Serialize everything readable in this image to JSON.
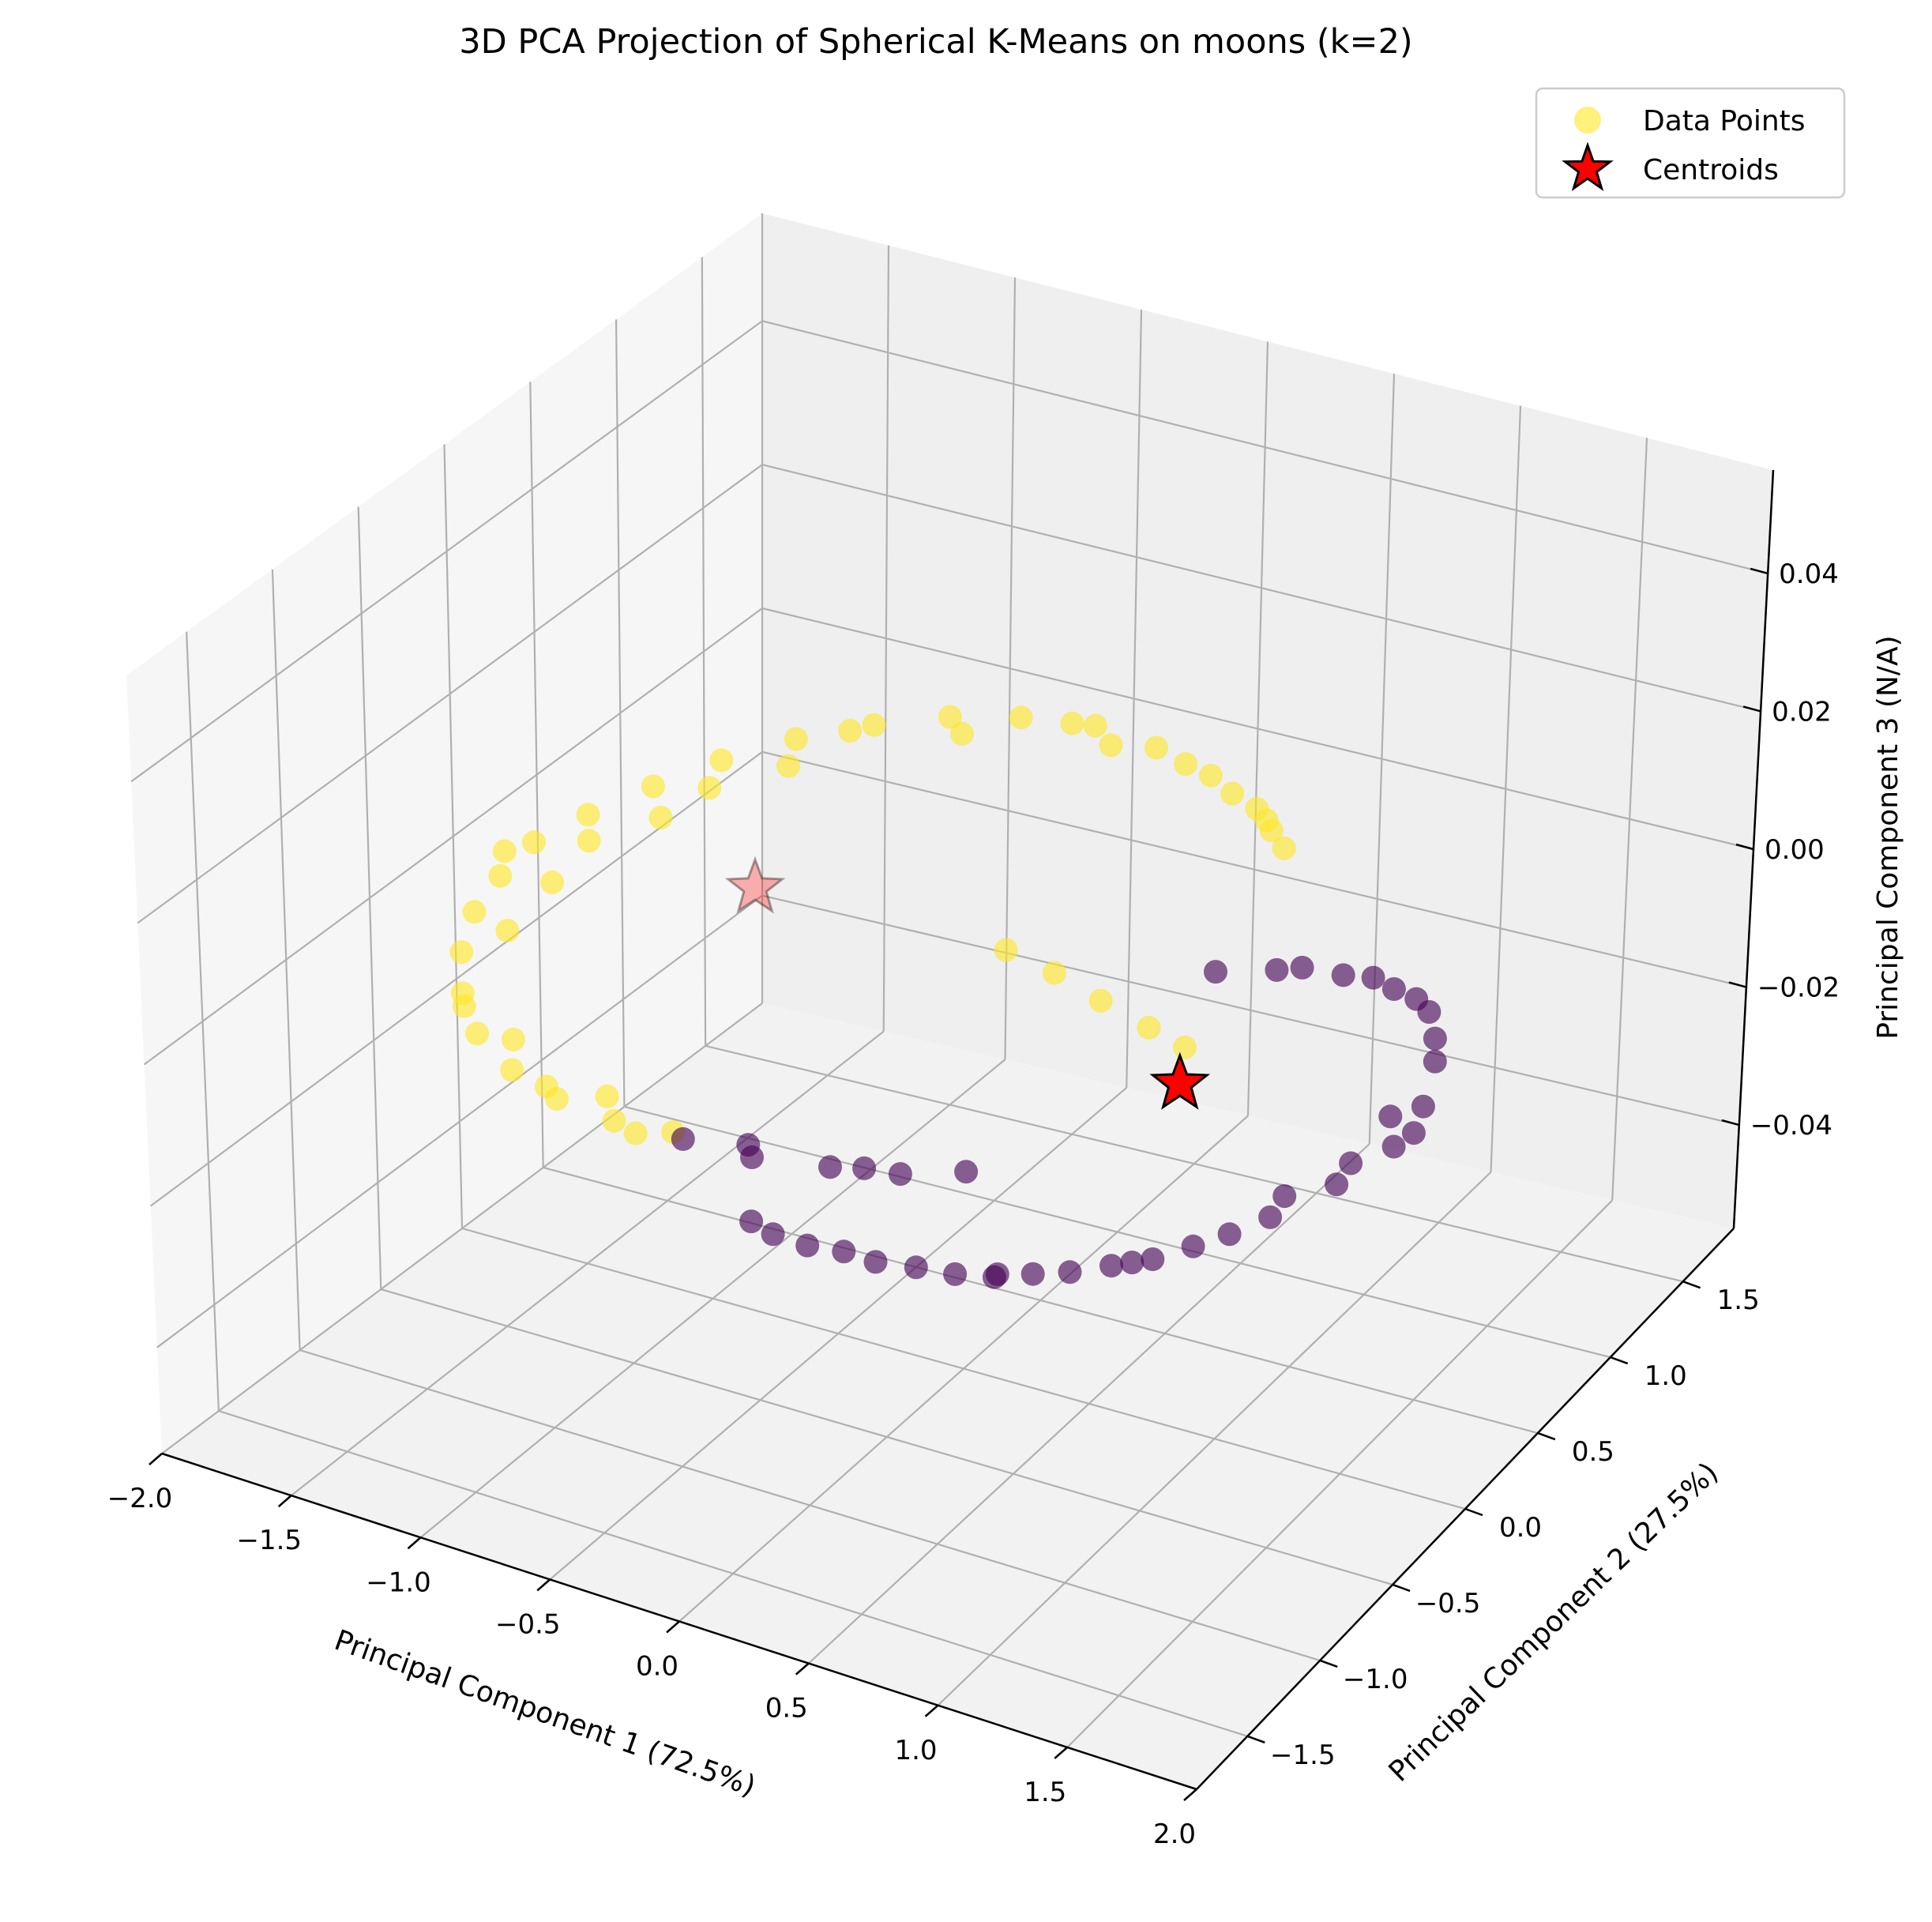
{
  "chart_data": {
    "type": "scatter",
    "projection": "3d",
    "title": "3D PCA Projection of Spherical K-Means on moons (k=2)",
    "xlabel": "Principal Component 1 (72.5%)",
    "ylabel": "Principal Component 2 (27.5%)",
    "zlabel": "Principal Component 3 (N/A)",
    "xlim": [
      -2.0,
      2.0
    ],
    "ylim": [
      -1.85,
      1.85
    ],
    "zlim": [
      -0.055,
      0.055
    ],
    "x_ticks": [
      "−2.0",
      "−1.5",
      "−1.0",
      "−0.5",
      "0.0",
      "0.5",
      "1.0",
      "1.5",
      "2.0"
    ],
    "y_ticks": [
      "−1.5",
      "−1.0",
      "−0.5",
      "0.0",
      "0.5",
      "1.0",
      "1.5"
    ],
    "z_ticks": [
      "−0.04",
      "−0.02",
      "0.00",
      "0.02",
      "0.04"
    ],
    "grid": true,
    "legend_position": "top-right",
    "legend": [
      {
        "label": "Data Points",
        "marker": "circle",
        "color": "#fde725"
      },
      {
        "label": "Centroids",
        "marker": "star",
        "color": "#ff0000"
      }
    ],
    "colors": {
      "cluster_0": "#440154",
      "cluster_1": "#fde725",
      "centroid": "#ff0000"
    },
    "series": [
      {
        "cluster": 1,
        "color": "#fde725",
        "points": [
          [
            -1.75,
            0.1
          ],
          [
            -1.7,
            0.35
          ],
          [
            -1.62,
            0.62
          ],
          [
            -1.52,
            0.88
          ],
          [
            -1.38,
            1.12
          ],
          [
            -1.2,
            1.32
          ],
          [
            -1.0,
            1.48
          ],
          [
            -0.78,
            1.58
          ],
          [
            -0.52,
            1.64
          ],
          [
            -0.25,
            1.6
          ],
          [
            0.02,
            1.52
          ],
          [
            0.28,
            1.4
          ],
          [
            0.5,
            1.22
          ],
          [
            -1.72,
            -0.15
          ],
          [
            -1.66,
            -0.4
          ],
          [
            -1.55,
            -0.65
          ],
          [
            -1.4,
            -0.88
          ],
          [
            -1.22,
            -1.08
          ],
          [
            -1.0,
            -1.22
          ],
          [
            -0.78,
            -1.3
          ],
          [
            -0.55,
            -1.32
          ],
          [
            -0.35,
            -1.28
          ],
          [
            -1.6,
            0.2
          ],
          [
            -1.55,
            -0.1
          ],
          [
            -1.48,
            0.45
          ],
          [
            -1.3,
            0.95
          ],
          [
            -0.9,
            1.4
          ],
          [
            -0.4,
            1.55
          ],
          [
            0.15,
            1.45
          ],
          [
            0.4,
            1.3
          ],
          [
            -1.5,
            -0.45
          ],
          [
            -1.1,
            -1.05
          ],
          [
            -0.65,
            -1.2
          ],
          [
            -1.8,
            0.0
          ],
          [
            -1.45,
            0.7
          ],
          [
            -0.1,
            1.55
          ],
          [
            -0.85,
            -1.25
          ],
          [
            0.0,
            0.25
          ],
          [
            0.22,
            0.2
          ],
          [
            0.45,
            0.12
          ],
          [
            0.68,
            0.05
          ],
          [
            0.85,
            0.0
          ],
          [
            -1.25,
            1.25
          ],
          [
            -0.6,
            1.62
          ],
          [
            0.35,
            1.35
          ],
          [
            -1.35,
            -0.95
          ],
          [
            -0.45,
            -1.35
          ]
        ]
      },
      {
        "cluster": 0,
        "color": "#440154",
        "points": [
          [
            -0.3,
            -1.3
          ],
          [
            -0.05,
            -1.28
          ],
          [
            0.2,
            -1.2
          ],
          [
            0.42,
            -1.12
          ],
          [
            0.6,
            -1.0
          ],
          [
            1.65,
            0.3
          ],
          [
            1.75,
            0.05
          ],
          [
            1.78,
            -0.2
          ],
          [
            1.72,
            -0.48
          ],
          [
            1.62,
            -0.75
          ],
          [
            1.48,
            -1.02
          ],
          [
            1.3,
            -1.25
          ],
          [
            1.1,
            -1.42
          ],
          [
            0.88,
            -1.55
          ],
          [
            0.62,
            -1.62
          ],
          [
            0.38,
            -1.65
          ],
          [
            0.15,
            -1.62
          ],
          [
            0.88,
            0.55
          ],
          [
            1.1,
            0.62
          ],
          [
            1.3,
            0.62
          ],
          [
            1.48,
            0.55
          ],
          [
            1.58,
            0.42
          ],
          [
            1.68,
            -0.05
          ],
          [
            1.6,
            -0.62
          ],
          [
            1.4,
            -1.15
          ],
          [
            1.0,
            -1.48
          ],
          [
            0.5,
            -1.62
          ],
          [
            -0.1,
            -1.22
          ],
          [
            0.3,
            -1.15
          ],
          [
            0.95,
            0.6
          ],
          [
            1.2,
            0.65
          ],
          [
            1.7,
            -0.35
          ],
          [
            1.55,
            -0.9
          ],
          [
            1.2,
            -1.35
          ],
          [
            0.75,
            -1.58
          ],
          [
            0.25,
            -1.65
          ],
          [
            1.0,
            -1.5
          ],
          [
            1.35,
            -1.2
          ],
          [
            1.8,
            -0.1
          ],
          [
            0.7,
            0.45
          ],
          [
            1.4,
            0.6
          ]
        ]
      }
    ],
    "centroids": [
      {
        "cluster": 1,
        "x": -0.95,
        "y": 0.2,
        "z": 0.0
      },
      {
        "cluster": 0,
        "x": 0.95,
        "y": -0.2,
        "z": 0.0
      }
    ]
  }
}
